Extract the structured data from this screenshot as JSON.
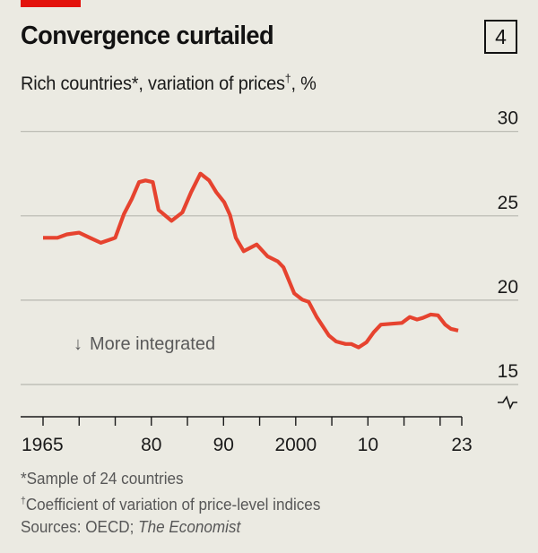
{
  "header": {
    "title": "Convergence curtailed",
    "chart_number": "4",
    "subtitle_main": "Rich countries",
    "subtitle_mark1": "*",
    "subtitle_mid": ", variation of prices",
    "subtitle_mark2": "†",
    "subtitle_end": ", %"
  },
  "annotation": {
    "arrow": "↓",
    "text": "More integrated"
  },
  "footnotes": {
    "note1": "*Sample of 24 countries",
    "note2_mark": "†",
    "note2_text": "Coefficient of variation of price-level indices",
    "sources_prefix": "Sources: OECD; ",
    "sources_italic": "The Economist"
  },
  "colors": {
    "brand_red": "#e3120b",
    "line": "#e6432f",
    "background": "#ebeae2",
    "grid": "#b7b7b0"
  },
  "chart_data": {
    "type": "line",
    "title": "Convergence curtailed",
    "subtitle": "Rich countries*, variation of prices†, %",
    "xlabel": "",
    "ylabel": "%",
    "xlim": [
      1965,
      2023
    ],
    "ylim": [
      15,
      30
    ],
    "y_axis_break": true,
    "y_ticks": [
      15,
      20,
      25,
      30
    ],
    "y_tick_labels": [
      "15",
      "20",
      "25",
      "30"
    ],
    "y_axis_position": "right",
    "x_ticks": [
      1965,
      1970,
      1975,
      1980,
      1985,
      1990,
      1995,
      2000,
      2005,
      2010,
      2015,
      2020,
      2023
    ],
    "x_tick_labels": [
      {
        "year": 1965,
        "label": "1965"
      },
      {
        "year": 1980,
        "label": "80"
      },
      {
        "year": 1990,
        "label": "90"
      },
      {
        "year": 2000,
        "label": "2000"
      },
      {
        "year": 2010,
        "label": "10"
      },
      {
        "year": 2023,
        "label": "23"
      }
    ],
    "grid": true,
    "legend": "none",
    "annotations": [
      {
        "text": "↓ More integrated",
        "x": 1970,
        "y": 17.3
      }
    ],
    "series": [
      {
        "name": "Variation of prices",
        "x": [
          1965,
          1967,
          1968.3,
          1970,
          1971.5,
          1973,
          1975,
          1976.2,
          1977.3,
          1978.3,
          1979.2,
          1980.2,
          1981.0,
          1982.8,
          1984.3,
          1985.5,
          1986.8,
          1988.0,
          1989.0,
          1990.1,
          1990.9,
          1991.7,
          1992.8,
          1994.6,
          1996.1,
          1997.5,
          1998.3,
          1999.8,
          2000.9,
          2001.8,
          2002.9,
          2004.6,
          2005.6,
          2006.9,
          2007.7,
          2008.7,
          2009.8,
          2010.8,
          2011.8,
          2013.3,
          2014.7,
          2015.8,
          2016.8,
          2017.6,
          2018.7,
          2019.7,
          2020.7,
          2021.5,
          2022.5
        ],
        "values": [
          23.7,
          23.7,
          23.9,
          24.0,
          23.7,
          23.4,
          23.7,
          25.1,
          26.0,
          27.0,
          27.1,
          27.0,
          25.35,
          24.7,
          25.2,
          26.4,
          27.5,
          27.1,
          26.4,
          25.8,
          25.05,
          23.7,
          22.9,
          23.3,
          22.6,
          22.3,
          21.95,
          20.4,
          20.03,
          19.9,
          19.0,
          17.9,
          17.55,
          17.4,
          17.4,
          17.2,
          17.5,
          18.1,
          18.55,
          18.6,
          18.65,
          19.0,
          18.85,
          18.95,
          19.15,
          19.1,
          18.55,
          18.3,
          18.2
        ]
      }
    ]
  }
}
